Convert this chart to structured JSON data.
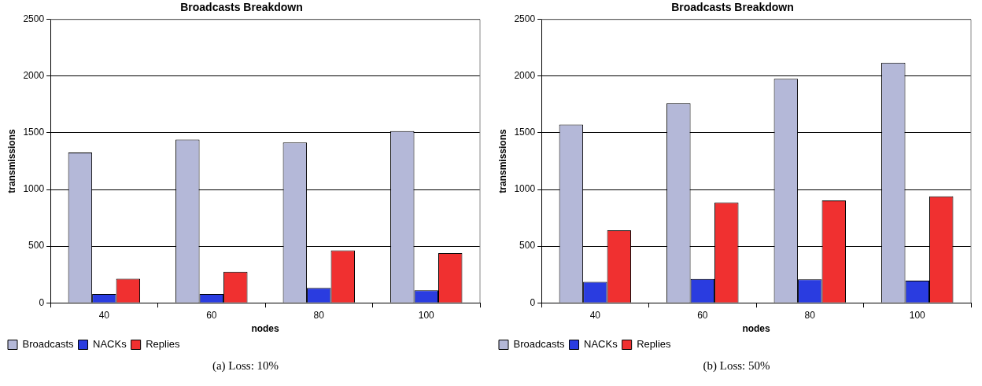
{
  "chart_data": [
    {
      "type": "bar",
      "title": "Broadcasts Breakdown",
      "xlabel": "nodes",
      "ylabel": "transmissions",
      "categories": [
        "40",
        "60",
        "80",
        "100"
      ],
      "series": [
        {
          "name": "Broadcasts",
          "color": "#b4b8d8",
          "values": [
            1327,
            1441,
            1414,
            1516
          ]
        },
        {
          "name": "NACKs",
          "color": "#2a3ce0",
          "values": [
            78,
            78,
            132,
            111
          ]
        },
        {
          "name": "Replies",
          "color": "#f03030",
          "values": [
            213,
            273,
            462,
            438
          ]
        }
      ],
      "ylim": [
        0,
        2500
      ],
      "yticks": [
        0,
        500,
        1000,
        1500,
        2000,
        2500
      ],
      "grid": "y",
      "legend": "bottom left",
      "annotations": [
        "(a) Loss: 10%"
      ]
    },
    {
      "type": "bar",
      "title": "Broadcasts Breakdown",
      "xlabel": "nodes",
      "ylabel": "transmissions",
      "categories": [
        "40",
        "60",
        "80",
        "100"
      ],
      "series": [
        {
          "name": "Broadcasts",
          "color": "#b4b8d8",
          "values": [
            1573,
            1762,
            1976,
            2119
          ]
        },
        {
          "name": "NACKs",
          "color": "#2a3ce0",
          "values": [
            186,
            211,
            208,
            195
          ]
        },
        {
          "name": "Replies",
          "color": "#f03030",
          "values": [
            640,
            886,
            903,
            940
          ]
        }
      ],
      "ylim": [
        0,
        2500
      ],
      "yticks": [
        0,
        500,
        1000,
        1500,
        2000,
        2500
      ],
      "grid": "y",
      "legend": "bottom left",
      "annotations": [
        "(b) Loss: 50%"
      ]
    }
  ]
}
